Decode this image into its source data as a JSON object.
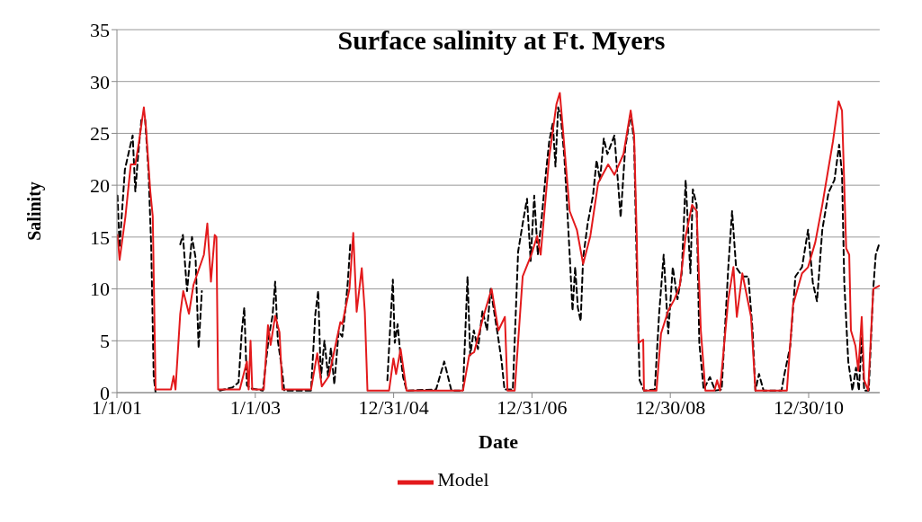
{
  "chart_data": {
    "type": "line",
    "title": "Surface salinity at Ft. Myers",
    "xlabel": "Date",
    "ylabel": "Salinity",
    "xlim": [
      "2001-01-01",
      "2012-01-09"
    ],
    "xticks": [
      {
        "value": "2001-01-01",
        "label": "1/1/01"
      },
      {
        "value": "2003-01-01",
        "label": "1/1/03"
      },
      {
        "value": "2004-12-31",
        "label": "12/31/04"
      },
      {
        "value": "2006-12-31",
        "label": "12/31/06"
      },
      {
        "value": "2008-12-30",
        "label": "12/30/08"
      },
      {
        "value": "2010-12-30",
        "label": "12/30/10"
      }
    ],
    "ylim": [
      0,
      35
    ],
    "yticks": [
      0,
      5,
      10,
      15,
      20,
      25,
      30,
      35
    ],
    "grid": "y",
    "legend": "bottom",
    "marker": "none",
    "series": [
      {
        "color": "#000000",
        "line_style": "dashed",
        "x": [
          "2001-01-04",
          "2001-01-15",
          "2001-02-12",
          "2001-03-06",
          "2001-03-25",
          "2001-04-08",
          "2001-04-22",
          "2001-05-10",
          "2001-05-30",
          "2001-06-17",
          "2001-07-01",
          "2001-07-14",
          "2001-07-24",
          "2001-09-15",
          "2001-12-01",
          "2001-12-15",
          "2002-01-06",
          "2002-02-01",
          "2002-02-20",
          "2002-03-08",
          "2002-03-25",
          "2002-05-01",
          "2002-06-28",
          "2002-09-03",
          "2002-10-05",
          "2002-10-22",
          "2002-11-04",
          "2002-11-18",
          "2002-12-07",
          "2003-02-10",
          "2003-03-14",
          "2003-04-02",
          "2003-04-16",
          "2003-04-30",
          "2003-05-20",
          "2003-06-03",
          "2003-10-22",
          "2003-11-14",
          "2003-11-29",
          "2003-12-13",
          "2004-01-01",
          "2004-01-20",
          "2004-02-04",
          "2004-02-22",
          "2004-03-16",
          "2004-04-04",
          "2004-04-18",
          "2004-05-03",
          "2004-05-17",
          "2004-09-01",
          "2004-11-28",
          "2004-12-12",
          "2004-12-27",
          "2005-01-06",
          "2005-01-21",
          "2005-02-05",
          "2005-02-19",
          "2005-03-10",
          "2005-08-12",
          "2005-09-24",
          "2005-11-01",
          "2006-01-01",
          "2006-01-25",
          "2006-02-08",
          "2006-02-27",
          "2006-03-21",
          "2006-04-14",
          "2006-05-08",
          "2006-05-27",
          "2006-06-11",
          "2006-07-05",
          "2006-07-24",
          "2006-08-08",
          "2006-09-21",
          "2006-10-19",
          "2006-11-12",
          "2006-12-05",
          "2006-12-24",
          "2007-01-12",
          "2007-01-31",
          "2007-02-19",
          "2007-03-14",
          "2007-04-01",
          "2007-04-20",
          "2007-05-04",
          "2007-05-18",
          "2007-06-01",
          "2007-06-20",
          "2007-07-04",
          "2007-07-18",
          "2007-08-02",
          "2007-08-16",
          "2007-08-30",
          "2007-09-14",
          "2007-09-27",
          "2007-10-21",
          "2007-11-18",
          "2007-12-07",
          "2007-12-25",
          "2008-01-14",
          "2008-02-02",
          "2008-03-10",
          "2008-04-12",
          "2008-05-06",
          "2008-06-04",
          "2008-06-22",
          "2008-07-06",
          "2008-07-21",
          "2008-08-13",
          "2008-10-09",
          "2008-11-01",
          "2008-11-25",
          "2008-12-19",
          "2009-01-12",
          "2009-02-06",
          "2009-02-28",
          "2009-03-21",
          "2009-04-15",
          "2009-04-28",
          "2009-05-18",
          "2009-06-01",
          "2009-06-24",
          "2009-07-27",
          "2009-08-24",
          "2009-09-27",
          "2009-11-01",
          "2009-11-21",
          "2009-12-12",
          "2010-01-14",
          "2010-02-15",
          "2010-03-09",
          "2010-03-24",
          "2010-04-12",
          "2010-05-06",
          "2010-08-09",
          "2010-08-21",
          "2010-09-24",
          "2010-10-21",
          "2010-11-25",
          "2010-12-27",
          "2011-01-21",
          "2011-02-12",
          "2011-03-12",
          "2011-04-14",
          "2011-05-15",
          "2011-06-09",
          "2011-06-24",
          "2011-07-06",
          "2011-07-27",
          "2011-08-18",
          "2011-09-06",
          "2011-09-21",
          "2011-10-06",
          "2011-10-19",
          "2011-11-12",
          "2011-12-06",
          "2011-12-19",
          "2012-01-09"
        ],
        "values": [
          19,
          14,
          21.5,
          23.3,
          24.8,
          19.4,
          22.7,
          26.3,
          26.3,
          21.2,
          14,
          1.6,
          0,
          null,
          14.3,
          15.2,
          9.8,
          15,
          13,
          4.3,
          9.8,
          null,
          0.2,
          0.5,
          1,
          6,
          8.2,
          0.7,
          0.4,
          0.2,
          5.5,
          7.4,
          10.7,
          5,
          2.5,
          0.2,
          0.2,
          7.6,
          9.8,
          1.4,
          5,
          1.6,
          4.3,
          0.8,
          5.9,
          5.4,
          7.6,
          10.6,
          14.5,
          null,
          1.2,
          6,
          10.9,
          4.8,
          6.6,
          3.6,
          1.5,
          0.2,
          0.3,
          3,
          0.2,
          0.2,
          11.2,
          3.6,
          6,
          4.2,
          7.9,
          6,
          10,
          8.2,
          5.4,
          3,
          0.3,
          0.3,
          13.6,
          16.3,
          18.7,
          12.7,
          19,
          13.3,
          16.6,
          21.1,
          24.2,
          26,
          21.8,
          27.5,
          26.6,
          22.7,
          18.1,
          13.3,
          7.9,
          12.1,
          8.2,
          6.9,
          13,
          16.3,
          19,
          22.4,
          20.5,
          24.5,
          23,
          24.8,
          16.9,
          23.6,
          26.9,
          24.2,
          12.1,
          1.2,
          0.2,
          0.3,
          7.6,
          13.3,
          5.7,
          12.1,
          9,
          11.5,
          20.5,
          11.5,
          19.6,
          18.1,
          4.8,
          0.3,
          1.5,
          0.2,
          0.3,
          12.1,
          17.5,
          12.1,
          11.2,
          11.2,
          6,
          0.2,
          1.8,
          0.2,
          0.2,
          1.5,
          4.5,
          11.2,
          12.1,
          15.7,
          10.6,
          8.8,
          15.7,
          19.3,
          20.5,
          23.9,
          21.1,
          10.6,
          3,
          0.2,
          2.4,
          0.2,
          5.4,
          0.2,
          0.2,
          10,
          13.3,
          14.5
        ]
      },
      {
        "name": "Model",
        "color": "#e31a1c",
        "line_style": "solid",
        "x": [
          "2001-01-04",
          "2001-01-15",
          "2001-02-15",
          "2001-03-15",
          "2001-04-08",
          "2001-04-26",
          "2001-05-23",
          "2001-06-03",
          "2001-06-26",
          "2001-07-09",
          "2001-07-24",
          "2001-10-13",
          "2001-10-27",
          "2001-11-06",
          "2001-12-01",
          "2001-12-17",
          "2002-01-16",
          "2002-02-09",
          "2002-04-05",
          "2002-04-23",
          "2002-05-12",
          "2002-06-01",
          "2002-06-10",
          "2002-06-19",
          "2002-10-11",
          "2002-11-18",
          "2002-11-27",
          "2002-12-07",
          "2002-12-16",
          "2003-02-15",
          "2003-03-09",
          "2003-03-23",
          "2003-04-16",
          "2003-05-09",
          "2003-05-24",
          "2003-10-22",
          "2003-11-24",
          "2003-12-18",
          "2004-01-25",
          "2004-03-25",
          "2004-04-04",
          "2004-05-12",
          "2004-06-01",
          "2004-06-19",
          "2004-07-16",
          "2004-08-01",
          "2004-08-15",
          "2004-12-07",
          "2004-12-30",
          "2005-01-13",
          "2005-02-06",
          "2005-03-09",
          "2006-01-01",
          "2006-02-03",
          "2006-03-01",
          "2006-04-18",
          "2006-06-01",
          "2006-07-07",
          "2006-08-10",
          "2006-08-24",
          "2006-10-01",
          "2006-11-12",
          "2006-12-28",
          "2007-01-27",
          "2007-02-15",
          "2007-04-01",
          "2007-05-09",
          "2007-05-27",
          "2007-06-15",
          "2007-07-18",
          "2007-08-25",
          "2007-09-27",
          "2007-11-04",
          "2007-12-15",
          "2008-02-06",
          "2008-03-10",
          "2008-04-27",
          "2008-06-04",
          "2008-06-22",
          "2008-07-06",
          "2008-07-15",
          "2008-08-09",
          "2008-08-13",
          "2008-10-18",
          "2008-11-11",
          "2008-12-19",
          "2009-01-21",
          "2009-02-18",
          "2009-03-21",
          "2009-04-24",
          "2009-05-18",
          "2009-06-09",
          "2009-07-03",
          "2009-08-20",
          "2009-09-03",
          "2009-09-18",
          "2009-11-01",
          "2009-11-28",
          "2009-12-16",
          "2010-01-14",
          "2010-03-01",
          "2010-03-24",
          "2010-09-06",
          "2010-10-09",
          "2010-11-25",
          "2010-12-27",
          "2011-02-03",
          "2011-03-12",
          "2011-04-14",
          "2011-05-07",
          "2011-06-06",
          "2011-06-24",
          "2011-07-16",
          "2011-08-01",
          "2011-08-10",
          "2011-09-03",
          "2011-09-18",
          "2011-10-06",
          "2011-10-19",
          "2011-11-09",
          "2011-12-06",
          "2012-01-06"
        ],
        "values": [
          15.2,
          12.8,
          17,
          22,
          22,
          24,
          27.5,
          25.6,
          19.4,
          17,
          0.3,
          0.3,
          1.6,
          0.3,
          7.6,
          9.8,
          7.6,
          10.4,
          13.3,
          16.3,
          10.7,
          15.2,
          15,
          0.3,
          0.3,
          3,
          0.3,
          5,
          0.3,
          0.3,
          6.5,
          4.6,
          7.4,
          5.8,
          0.3,
          0.3,
          3.8,
          0.6,
          1.6,
          6.8,
          6.6,
          10,
          15.4,
          7.8,
          12,
          7.8,
          0.2,
          0.2,
          3.3,
          1.8,
          4.2,
          0.2,
          0.2,
          3.6,
          3.9,
          7.3,
          10,
          6,
          7.3,
          0.2,
          0.2,
          11.2,
          13.3,
          15.1,
          13.3,
          22.7,
          27.8,
          28.9,
          24.8,
          17.5,
          15.7,
          12.4,
          15.1,
          20.2,
          22,
          21,
          23,
          27.2,
          24.8,
          15,
          4.8,
          5.1,
          0.2,
          0.2,
          5.7,
          7.9,
          9,
          10.3,
          15.1,
          18.1,
          17.5,
          6,
          0.2,
          0.2,
          1.2,
          0.2,
          9,
          12.1,
          7.3,
          11.5,
          7.3,
          0.2,
          0.2,
          8.5,
          11.5,
          12.1,
          14.5,
          18.1,
          21.7,
          24.2,
          28.1,
          27.2,
          13.9,
          13.3,
          6,
          4.5,
          2.1,
          7.3,
          1.2,
          0.2,
          10,
          10.3
        ]
      }
    ]
  }
}
